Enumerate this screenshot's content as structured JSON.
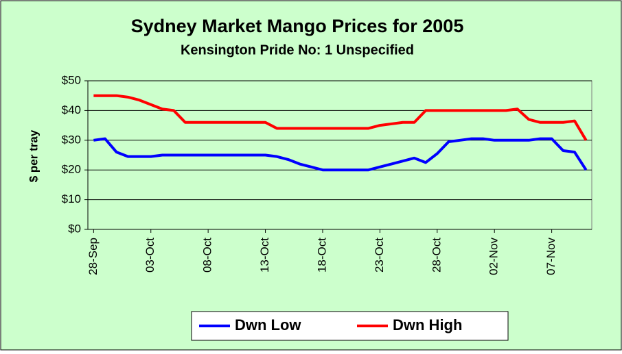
{
  "chart_data": {
    "type": "line",
    "title": "Sydney Market Mango Prices for 2005",
    "subtitle": "Kensington Pride No: 1 Unspecified",
    "y_label": "$ per tray",
    "categories": [
      "28-Sep",
      null,
      null,
      null,
      null,
      "03-Oct",
      null,
      null,
      null,
      null,
      "08-Oct",
      null,
      null,
      null,
      null,
      "13-Oct",
      null,
      null,
      null,
      null,
      "18-Oct",
      null,
      null,
      null,
      null,
      "23-Oct",
      null,
      null,
      null,
      null,
      "28-Oct",
      null,
      null,
      null,
      null,
      "02-Nov",
      null,
      null,
      null,
      null,
      "07-Nov",
      null,
      null,
      null
    ],
    "series": [
      {
        "name": "Dwn Low",
        "color": "#0000ff",
        "values": [
          30,
          30.5,
          26,
          24.5,
          24.5,
          24.5,
          25,
          25,
          25,
          25,
          25,
          25,
          25,
          25,
          25,
          25,
          24.5,
          23.5,
          22,
          21,
          20,
          20,
          20,
          20,
          20,
          21,
          22,
          23,
          24,
          22.5,
          25.5,
          29.5,
          30,
          30.5,
          30.5,
          30,
          30,
          30,
          30,
          30.5,
          30.5,
          26.5,
          26,
          20
        ]
      },
      {
        "name": "Dwn High",
        "color": "#ff0000",
        "values": [
          45,
          45,
          45,
          44.5,
          43.5,
          42,
          40.5,
          40,
          36,
          36,
          36,
          36,
          36,
          36,
          36,
          36,
          34,
          34,
          34,
          34,
          34,
          34,
          34,
          34,
          34,
          35,
          35.5,
          36,
          36,
          40,
          40,
          40,
          40,
          40,
          40,
          40,
          40,
          40.5,
          37,
          36,
          36,
          36,
          36.5,
          30
        ]
      }
    ],
    "ylim": [
      0,
      50
    ],
    "yticks": [
      {
        "value": 0,
        "label": "$0"
      },
      {
        "value": 10,
        "label": "$10"
      },
      {
        "value": 20,
        "label": "$20"
      },
      {
        "value": 30,
        "label": "$30"
      },
      {
        "value": 40,
        "label": "$40"
      },
      {
        "value": 50,
        "label": "$50"
      }
    ],
    "grid": true
  }
}
